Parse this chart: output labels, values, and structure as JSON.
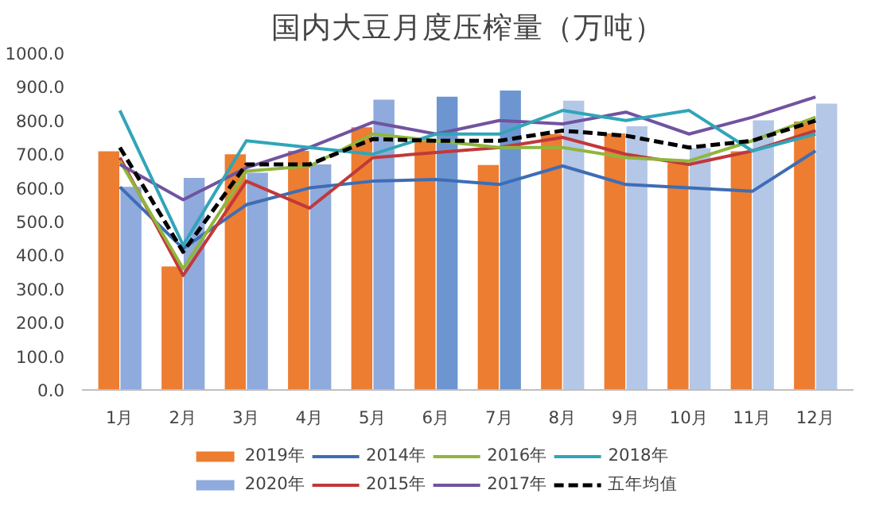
{
  "chart_data": {
    "type": "bar",
    "title": "国内大豆月度压榨量（万吨）",
    "categories": [
      "1月",
      "2月",
      "3月",
      "4月",
      "5月",
      "6月",
      "7月",
      "8月",
      "9月",
      "10月",
      "11月",
      "12月"
    ],
    "series": [
      {
        "name": "2019年",
        "color": "#ed7d31",
        "values": [
          709,
          367,
          700,
          710,
          780,
          740,
          668,
          760,
          762,
          674,
          709,
          797
        ]
      },
      {
        "name": "2020年",
        "color": "#8faadc",
        "colors": [
          "#8faadc",
          "#8faadc",
          "#8faadc",
          "#8faadc",
          "#8faadc",
          "#6d96d0",
          "#6d96d0",
          "#b4c7e7",
          "#b4c7e7",
          "#b4c7e7",
          "#b4c7e7",
          "#b4c7e7"
        ],
        "values": [
          603,
          630,
          645,
          670,
          862,
          871,
          889,
          859,
          783,
          718,
          801,
          850
        ]
      },
      {
        "name": "2014年",
        "type": "line",
        "color": "#3e6db5",
        "values": [
          603,
          420,
          550,
          600,
          620,
          625,
          610,
          665,
          610,
          600,
          590,
          710
        ]
      },
      {
        "name": "2015年",
        "type": "line",
        "color": "#c0393b",
        "values": [
          690,
          340,
          620,
          540,
          690,
          705,
          720,
          750,
          700,
          670,
          710,
          770
        ]
      },
      {
        "name": "2016年",
        "type": "line",
        "color": "#8fb63c",
        "values": [
          680,
          360,
          650,
          665,
          760,
          740,
          720,
          720,
          690,
          680,
          740,
          810
        ]
      },
      {
        "name": "2017年",
        "type": "line",
        "color": "#7153a0",
        "values": [
          670,
          565,
          660,
          720,
          795,
          760,
          800,
          790,
          825,
          760,
          810,
          870
        ]
      },
      {
        "name": "2018年",
        "type": "line",
        "color": "#31a5b8",
        "values": [
          830,
          430,
          740,
          720,
          700,
          760,
          760,
          830,
          800,
          830,
          710,
          760
        ]
      },
      {
        "name": "五年均值",
        "type": "line",
        "color": "#000000",
        "line_style": "dashed",
        "values": [
          720,
          410,
          670,
          670,
          745,
          740,
          740,
          770,
          755,
          720,
          740,
          800
        ]
      }
    ],
    "ylim": [
      0,
      1000
    ],
    "yticks": [
      {
        "value": 0,
        "label": "0.0"
      },
      {
        "value": 100,
        "label": "100.0"
      },
      {
        "value": 200,
        "label": "200.0"
      },
      {
        "value": 300,
        "label": "300.0"
      },
      {
        "value": 400,
        "label": "400.0"
      },
      {
        "value": 500,
        "label": "500.0"
      },
      {
        "value": 600,
        "label": "600.0"
      },
      {
        "value": 700,
        "label": "700.0"
      },
      {
        "value": 800,
        "label": "800.0"
      },
      {
        "value": 900,
        "label": "900.0"
      },
      {
        "value": 1000,
        "label": "1000.0"
      }
    ],
    "grid": false,
    "legend": "bottom"
  }
}
